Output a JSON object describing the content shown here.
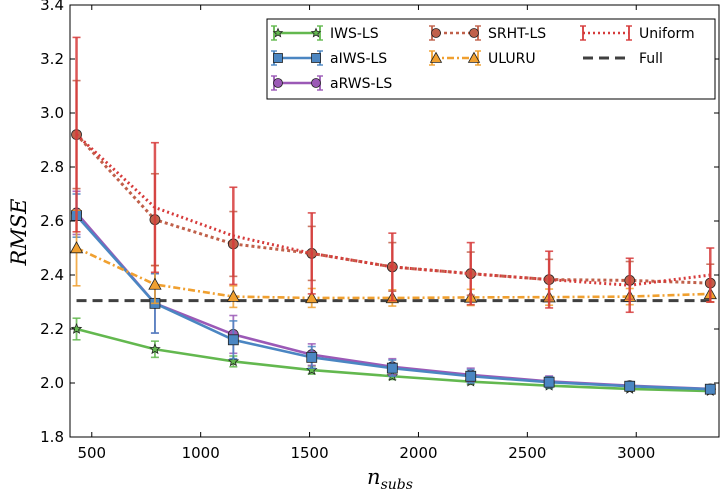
{
  "chart_data": {
    "type": "line",
    "title": "",
    "xlabel": "n_subs",
    "xlabel_main": "n",
    "xlabel_sub": "subs",
    "ylabel": "RMSE",
    "xlim": [
      400,
      3380
    ],
    "ylim": [
      1.8,
      3.4
    ],
    "xticks": [
      500,
      1000,
      1500,
      2000,
      2500,
      3000
    ],
    "yticks": [
      1.8,
      2.0,
      2.2,
      2.4,
      2.6,
      2.8,
      3.0,
      3.2,
      3.4
    ],
    "x": [
      430,
      790,
      1150,
      1510,
      1880,
      2240,
      2600,
      2970,
      3340
    ],
    "legend_position": "top-right",
    "series": [
      {
        "name": "IWS-LS",
        "color": "#63b84f",
        "marker": "star",
        "dash": "",
        "values": [
          2.2,
          2.125,
          2.08,
          2.048,
          2.025,
          2.005,
          1.99,
          1.978,
          1.97
        ],
        "errors": [
          0.04,
          0.03,
          0.02,
          0.015,
          0.012,
          0.01,
          0.01,
          0.008,
          0.008
        ]
      },
      {
        "name": "aIWS-LS",
        "color": "#4b86c2",
        "marker": "square",
        "dash": "",
        "values": [
          2.62,
          2.295,
          2.16,
          2.095,
          2.055,
          2.025,
          2.003,
          1.988,
          1.977
        ],
        "errors": [
          0.08,
          0.11,
          0.07,
          0.04,
          0.03,
          0.025,
          0.02,
          0.015,
          0.01
        ]
      },
      {
        "name": "aRWS-LS",
        "color": "#9b59b6",
        "marker": "circle",
        "dash": "",
        "values": [
          2.63,
          2.295,
          2.18,
          2.105,
          2.06,
          2.03,
          2.006,
          1.99,
          1.978
        ],
        "errors": [
          0.08,
          0.11,
          0.07,
          0.04,
          0.03,
          0.025,
          0.02,
          0.015,
          0.01
        ]
      },
      {
        "name": "SRHT-LS",
        "color": "#c0604a",
        "marker": "circle",
        "dash": "3,3",
        "values": [
          2.92,
          2.605,
          2.515,
          2.48,
          2.43,
          2.405,
          2.383,
          2.38,
          2.37
        ],
        "errors": [
          0.2,
          0.17,
          0.12,
          0.1,
          0.09,
          0.08,
          0.075,
          0.07,
          0.07
        ]
      },
      {
        "name": "ULURU",
        "color": "#f0a030",
        "marker": "triangle",
        "dash": "7,3,2,3",
        "values": [
          2.5,
          2.365,
          2.32,
          2.315,
          2.315,
          2.317,
          2.318,
          2.32,
          2.33
        ],
        "errors": [
          0.14,
          0.07,
          0.04,
          0.035,
          0.03,
          0.03,
          0.03,
          0.03,
          0.03
        ]
      },
      {
        "name": "Uniform",
        "color": "#d63a3a",
        "marker": "none",
        "dash": "2,3",
        "values": [
          2.92,
          2.65,
          2.545,
          2.48,
          2.43,
          2.405,
          2.383,
          2.362,
          2.4
        ],
        "errors": [
          0.36,
          0.24,
          0.18,
          0.15,
          0.125,
          0.115,
          0.105,
          0.1,
          0.1
        ]
      },
      {
        "name": "Full",
        "color": "#404040",
        "marker": "none",
        "dash": "10,6",
        "values": [
          2.305,
          2.305,
          2.305,
          2.305,
          2.305,
          2.305,
          2.305,
          2.305,
          2.305
        ],
        "errors": null
      }
    ]
  }
}
